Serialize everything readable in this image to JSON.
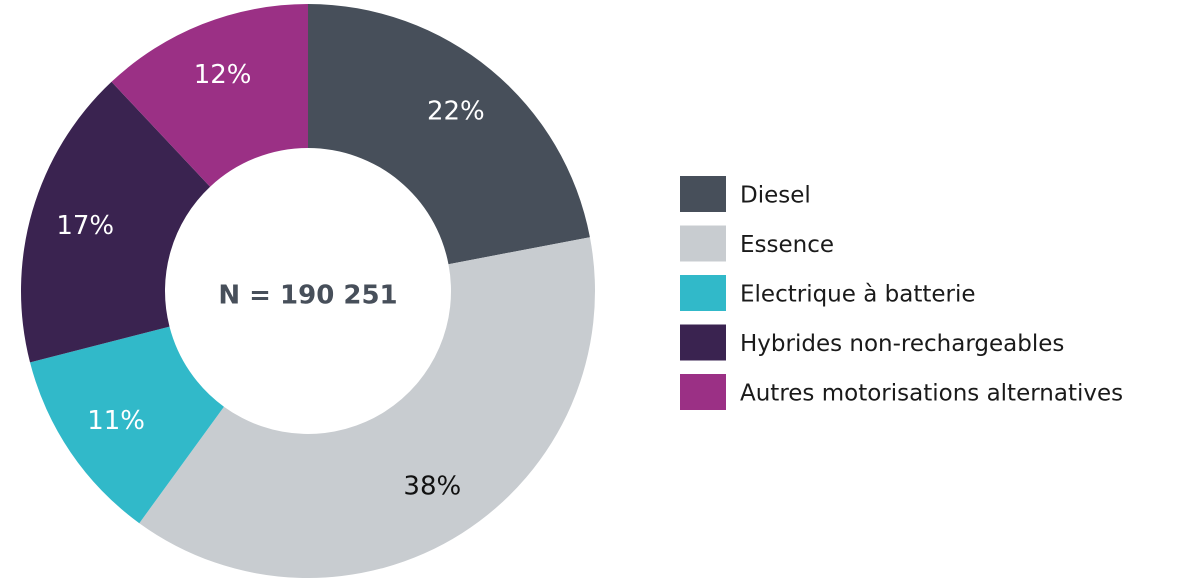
{
  "chart_data": {
    "type": "donut",
    "center_label": "N = 190 251",
    "categories": [
      "Diesel",
      "Essence",
      "Electrique à batterie",
      "Hybrides non-rechargeables",
      "Autres motorisations alternatives"
    ],
    "values": [
      22,
      38,
      11,
      17,
      12
    ],
    "value_labels": [
      "22%",
      "38%",
      "11%",
      "17%",
      "12%"
    ],
    "colors": [
      "#474f5a",
      "#c8ccd0",
      "#31b9c9",
      "#3a2350",
      "#9b3085"
    ],
    "legend": "right"
  }
}
